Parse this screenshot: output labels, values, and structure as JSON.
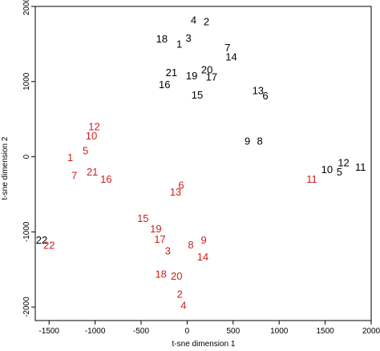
{
  "chart_data": {
    "type": "scatter",
    "title": "",
    "xlabel": "t-sne dimension 1",
    "ylabel": "t-sne dimension 2",
    "xlim": [
      -1650,
      2000
    ],
    "ylim": [
      -2180,
      2000
    ],
    "x_ticks": [
      -1500,
      -1000,
      -500,
      0,
      500,
      1000,
      1500,
      2000
    ],
    "y_ticks": [
      -2000,
      -1000,
      0,
      1000,
      2000
    ],
    "grid": false,
    "colors": {
      "black": "#000000",
      "red": "#cc1f1f"
    },
    "series": [
      {
        "color": "black",
        "points": [
          {
            "label": "4",
            "x": 70,
            "y": 1820
          },
          {
            "label": "2",
            "x": 210,
            "y": 1800
          },
          {
            "label": "18",
            "x": -275,
            "y": 1570
          },
          {
            "label": "3",
            "x": 15,
            "y": 1580
          },
          {
            "label": "1",
            "x": -85,
            "y": 1500
          },
          {
            "label": "7",
            "x": 440,
            "y": 1450
          },
          {
            "label": "14",
            "x": 480,
            "y": 1330
          },
          {
            "label": "21",
            "x": -170,
            "y": 1120
          },
          {
            "label": "20",
            "x": 215,
            "y": 1160
          },
          {
            "label": "19",
            "x": 50,
            "y": 1080
          },
          {
            "label": "17",
            "x": 265,
            "y": 1060
          },
          {
            "label": "16",
            "x": -245,
            "y": 960
          },
          {
            "label": "15",
            "x": 110,
            "y": 820
          },
          {
            "label": "13",
            "x": 770,
            "y": 880
          },
          {
            "label": "6",
            "x": 850,
            "y": 810
          },
          {
            "label": "9",
            "x": 655,
            "y": 210
          },
          {
            "label": "8",
            "x": 790,
            "y": 210
          },
          {
            "label": "12",
            "x": 1700,
            "y": -80
          },
          {
            "label": "11",
            "x": 1885,
            "y": -140
          },
          {
            "label": "10",
            "x": 1520,
            "y": -170
          },
          {
            "label": "5",
            "x": 1655,
            "y": -200
          },
          {
            "label": "22",
            "x": -1580,
            "y": -1110
          }
        ]
      },
      {
        "color": "red",
        "points": [
          {
            "label": "12",
            "x": -1010,
            "y": 400
          },
          {
            "label": "10",
            "x": -1040,
            "y": 280
          },
          {
            "label": "5",
            "x": -1105,
            "y": 80
          },
          {
            "label": "1",
            "x": -1270,
            "y": -10
          },
          {
            "label": "7",
            "x": -1225,
            "y": -250
          },
          {
            "label": "21",
            "x": -1030,
            "y": -200
          },
          {
            "label": "16",
            "x": -880,
            "y": -300
          },
          {
            "label": "6",
            "x": -65,
            "y": -380
          },
          {
            "label": "13",
            "x": -125,
            "y": -470
          },
          {
            "label": "11",
            "x": 1355,
            "y": -300
          },
          {
            "label": "15",
            "x": -480,
            "y": -820
          },
          {
            "label": "19",
            "x": -340,
            "y": -960
          },
          {
            "label": "17",
            "x": -295,
            "y": -1100
          },
          {
            "label": "3",
            "x": -210,
            "y": -1250
          },
          {
            "label": "8",
            "x": 40,
            "y": -1170
          },
          {
            "label": "9",
            "x": 180,
            "y": -1110
          },
          {
            "label": "14",
            "x": 170,
            "y": -1330
          },
          {
            "label": "18",
            "x": -285,
            "y": -1560
          },
          {
            "label": "20",
            "x": -115,
            "y": -1590
          },
          {
            "label": "2",
            "x": -80,
            "y": -1830
          },
          {
            "label": "4",
            "x": -40,
            "y": -1980
          },
          {
            "label": "22",
            "x": -1500,
            "y": -1180
          }
        ]
      }
    ]
  }
}
